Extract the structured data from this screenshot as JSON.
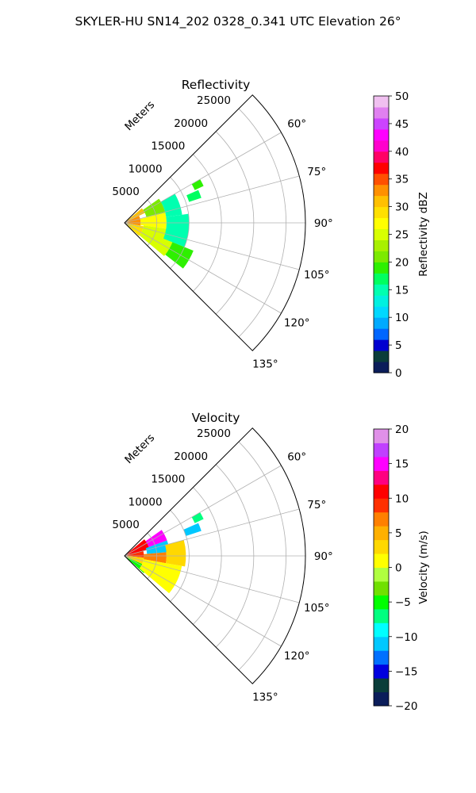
{
  "figure": {
    "title": "SKYLER-HU  SN14_202  0328_0.341 UTC Elevation 26°"
  },
  "chart_data": [
    {
      "type": "heatmap",
      "projection": "polar-sector",
      "title": "Reflectivity",
      "radial_label": "Meters",
      "radial_ticks": [
        5000,
        10000,
        15000,
        20000,
        25000
      ],
      "radial_tick_labels": [
        "5000",
        "10000",
        "15000",
        "20000",
        "25000"
      ],
      "rmax": 28000,
      "theta_range_deg": [
        45,
        135
      ],
      "theta_ticks_deg": [
        60,
        75,
        90,
        105,
        120,
        135
      ],
      "theta_tick_labels": [
        "60°",
        "75°",
        "90°",
        "105°",
        "120°",
        "135°"
      ],
      "grid": true,
      "colorbar": {
        "label": "Reflectivity dBZ",
        "range": [
          0,
          50
        ],
        "ticks": [
          "0",
          "5",
          "10",
          "15",
          "20",
          "25",
          "30",
          "35",
          "40",
          "45",
          "50"
        ]
      },
      "echo_regions": [
        {
          "theta": [
            50,
            64
          ],
          "r": [
            0,
            3500
          ],
          "value": 30
        },
        {
          "theta": [
            64,
            100
          ],
          "r": [
            0,
            2500
          ],
          "value": 33
        },
        {
          "theta": [
            100,
            132
          ],
          "r": [
            0,
            3000
          ],
          "value": 28
        },
        {
          "theta": [
            55,
            76
          ],
          "r": [
            3500,
            6500
          ],
          "value": 20
        },
        {
          "theta": [
            76,
            98
          ],
          "r": [
            2500,
            6500
          ],
          "value": 27
        },
        {
          "theta": [
            98,
            130
          ],
          "r": [
            3000,
            8000
          ],
          "value": 24
        },
        {
          "theta": [
            60,
            82
          ],
          "r": [
            6500,
            9000
          ],
          "value": 14
        },
        {
          "theta": [
            82,
            112
          ],
          "r": [
            6500,
            10000
          ],
          "value": 14
        },
        {
          "theta": [
            112,
            128
          ],
          "r": [
            8000,
            11500
          ],
          "value": 19
        },
        {
          "theta": [
            66,
            72
          ],
          "r": [
            10500,
            12500
          ],
          "value": 16
        },
        {
          "theta": [
            60,
            65
          ],
          "r": [
            12000,
            13500
          ],
          "value": 18
        }
      ]
    },
    {
      "type": "heatmap",
      "projection": "polar-sector",
      "title": "Velocity",
      "radial_label": "Meters",
      "radial_ticks": [
        5000,
        10000,
        15000,
        20000,
        25000
      ],
      "radial_tick_labels": [
        "5000",
        "10000",
        "15000",
        "20000",
        "25000"
      ],
      "rmax": 28000,
      "theta_range_deg": [
        45,
        135
      ],
      "theta_ticks_deg": [
        60,
        75,
        90,
        105,
        120,
        135
      ],
      "theta_tick_labels": [
        "60°",
        "75°",
        "90°",
        "105°",
        "120°",
        "135°"
      ],
      "grid": true,
      "colorbar": {
        "label": "Velocity (m/s)",
        "range": [
          -20,
          20
        ],
        "ticks": [
          "−20",
          "−15",
          "−10",
          "−5",
          "0",
          "5",
          "10",
          "15",
          "20"
        ]
      },
      "echo_regions": [
        {
          "theta": [
            50,
            75
          ],
          "r": [
            0,
            4000
          ],
          "value": 10
        },
        {
          "theta": [
            75,
            95
          ],
          "r": [
            0,
            3000
          ],
          "value": 8
        },
        {
          "theta": [
            95,
            115
          ],
          "r": [
            0,
            3000
          ],
          "value": 3
        },
        {
          "theta": [
            115,
            132
          ],
          "r": [
            0,
            4000
          ],
          "value": -6
        },
        {
          "theta": [
            55,
            70
          ],
          "r": [
            4000,
            7000
          ],
          "value": 14
        },
        {
          "theta": [
            70,
            85
          ],
          "r": [
            3500,
            7000
          ],
          "value": -12
        },
        {
          "theta": [
            85,
            100
          ],
          "r": [
            3000,
            6500
          ],
          "value": 6
        },
        {
          "theta": [
            100,
            130
          ],
          "r": [
            3000,
            9000
          ],
          "value": 1
        },
        {
          "theta": [
            75,
            100
          ],
          "r": [
            6500,
            9500
          ],
          "value": 3
        },
        {
          "theta": [
            66,
            72
          ],
          "r": [
            10000,
            12500
          ],
          "value": -11
        },
        {
          "theta": [
            60,
            65
          ],
          "r": [
            12000,
            13500
          ],
          "value": -8
        }
      ]
    }
  ]
}
